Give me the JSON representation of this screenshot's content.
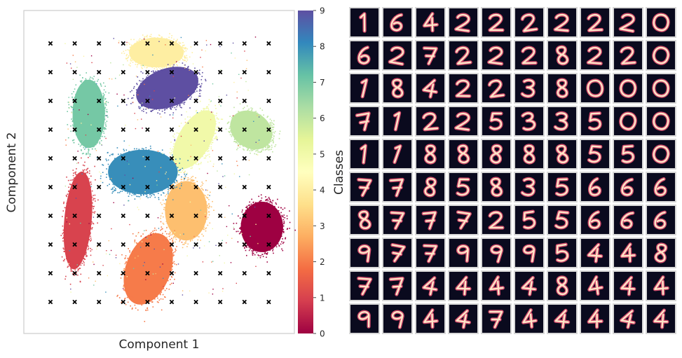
{
  "chart_data": [
    {
      "type": "scatter",
      "xlabel": "Component 1",
      "ylabel": "Component 2",
      "xlim": [
        0,
        1
      ],
      "ylim": [
        0,
        1
      ],
      "grid": false,
      "colorbar": {
        "label": "Classes",
        "range": [
          0,
          9
        ],
        "ticks": [
          "0",
          "1",
          "2",
          "3",
          "4",
          "5",
          "6",
          "7",
          "8",
          "9"
        ],
        "colormap": "Spectral",
        "colors": [
          "#9e0142",
          "#d53e4f",
          "#f46d43",
          "#fdae61",
          "#fee08b",
          "#ffffbf",
          "#e6f598",
          "#abdda4",
          "#66c2a5",
          "#3288bd",
          "#5e4fa2"
        ]
      },
      "markers": {
        "symbol": "x",
        "color": "#000000",
        "columns": 10,
        "rows": 10
      },
      "clusters": [
        {
          "class": 0,
          "center": [
            0.88,
            0.33
          ]
        },
        {
          "class": 1,
          "center": [
            0.2,
            0.35
          ]
        },
        {
          "class": 2,
          "center": [
            0.46,
            0.2
          ]
        },
        {
          "class": 3,
          "center": [
            0.6,
            0.38
          ]
        },
        {
          "class": 4,
          "center": [
            0.49,
            0.87
          ]
        },
        {
          "class": 5,
          "center": [
            0.63,
            0.6
          ]
        },
        {
          "class": 6,
          "center": [
            0.84,
            0.63
          ]
        },
        {
          "class": 7,
          "center": [
            0.24,
            0.68
          ]
        },
        {
          "class": 8,
          "center": [
            0.44,
            0.5
          ]
        },
        {
          "class": 9,
          "center": [
            0.53,
            0.76
          ]
        }
      ]
    },
    {
      "type": "image-grid",
      "rows": 10,
      "columns": 10,
      "colormap": "magma",
      "digits": [
        [
          "1",
          "6",
          "4",
          "2",
          "2",
          "2",
          "2",
          "2",
          "2",
          "0"
        ],
        [
          "6",
          "2",
          "7",
          "2",
          "2",
          "2",
          "8",
          "2",
          "2",
          "0"
        ],
        [
          "1",
          "8",
          "4",
          "2",
          "2",
          "3",
          "8",
          "0",
          "0",
          "0"
        ],
        [
          "7",
          "1",
          "2",
          "2",
          "5",
          "3",
          "3",
          "5",
          "0",
          "0"
        ],
        [
          "1",
          "1",
          "8",
          "8",
          "8",
          "8",
          "8",
          "5",
          "5",
          "0"
        ],
        [
          "7",
          "7",
          "8",
          "5",
          "8",
          "3",
          "5",
          "6",
          "6",
          "6"
        ],
        [
          "8",
          "7",
          "7",
          "7",
          "2",
          "5",
          "5",
          "6",
          "6",
          "6"
        ],
        [
          "9",
          "7",
          "7",
          "9",
          "9",
          "9",
          "5",
          "4",
          "4",
          "8"
        ],
        [
          "7",
          "7",
          "4",
          "4",
          "4",
          "4",
          "8",
          "4",
          "4",
          "4"
        ],
        [
          "9",
          "9",
          "4",
          "4",
          "7",
          "4",
          "4",
          "4",
          "4",
          "4"
        ]
      ]
    }
  ]
}
